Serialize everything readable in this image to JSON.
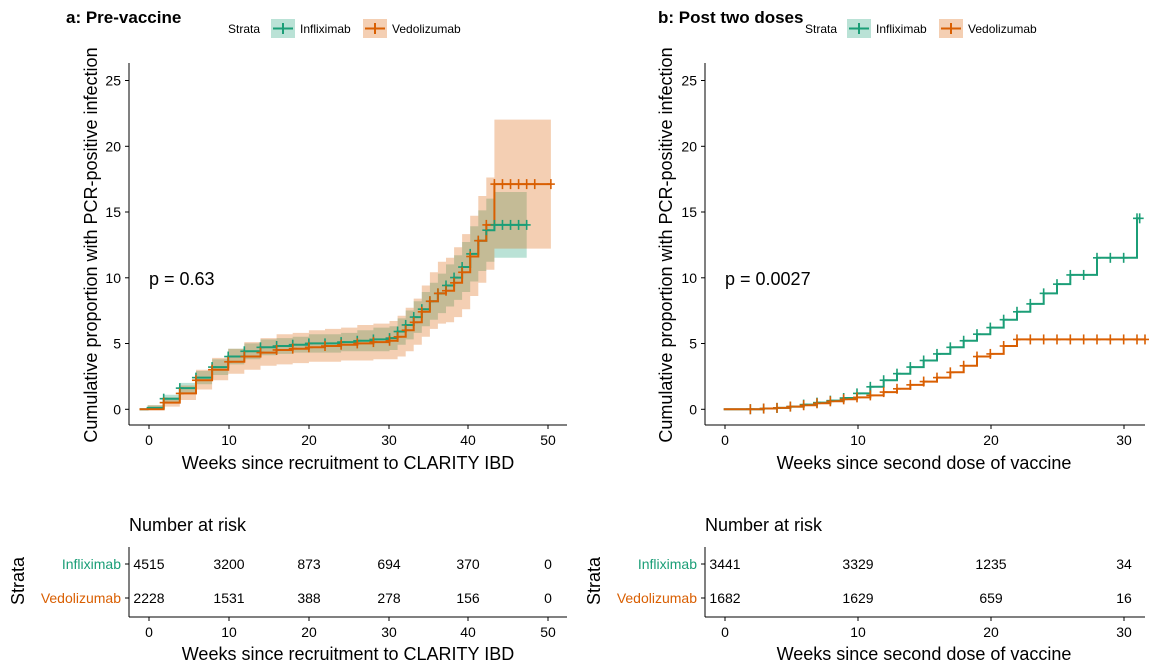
{
  "colors": {
    "infliximab": "#1B9E77",
    "vedolizumab": "#D95F02"
  },
  "panels": [
    {
      "title": "a: Pre-vaccine",
      "legend_title": "Strata",
      "legend_items": [
        "Infliximab",
        "Vedolizumab"
      ],
      "ylabel": "Cumulative proportion with PCR-positive infection",
      "xlabel": "Weeks since recruitment to CLARITY IBD",
      "pvalue": "p = 0.63",
      "y_ticks": [
        "0",
        "5",
        "10",
        "15",
        "20",
        "25"
      ],
      "x_ticks": [
        "0",
        "10",
        "20",
        "30",
        "40",
        "50"
      ],
      "risk_title": "Number at risk",
      "risk_strata_label": "Strata",
      "risk_rows": [
        {
          "label": "Infliximab",
          "values": [
            "4515",
            "3200",
            "873",
            "694",
            "370",
            "0"
          ]
        },
        {
          "label": "Vedolizumab",
          "values": [
            "2228",
            "1531",
            "388",
            "278",
            "156",
            "0"
          ]
        }
      ],
      "risk_x_ticks": [
        "0",
        "10",
        "20",
        "30",
        "40",
        "50"
      ],
      "risk_xlabel": "Weeks since recruitment to CLARITY IBD"
    },
    {
      "title": "b: Post two doses",
      "legend_title": "Strata",
      "legend_items": [
        "Infliximab",
        "Vedolizumab"
      ],
      "ylabel": "Cumulative proportion with PCR-positive infection",
      "xlabel": "Weeks since second dose of vaccine",
      "pvalue": "p = 0.0027",
      "y_ticks": [
        "0",
        "5",
        "10",
        "15",
        "20",
        "25"
      ],
      "x_ticks": [
        "0",
        "10",
        "20",
        "30"
      ],
      "risk_title": "Number at risk",
      "risk_strata_label": "Strata",
      "risk_rows": [
        {
          "label": "Infliximab",
          "values": [
            "3441",
            "3329",
            "1235",
            "34"
          ]
        },
        {
          "label": "Vedolizumab",
          "values": [
            "1682",
            "1629",
            "659",
            "16"
          ]
        }
      ],
      "risk_x_ticks": [
        "0",
        "10",
        "20",
        "30"
      ],
      "risk_xlabel": "Weeks since second dose of vaccine"
    }
  ],
  "chart_data": [
    {
      "type": "line",
      "title": "a: Pre-vaccine",
      "xlabel": "Weeks since recruitment to CLARITY IBD",
      "ylabel": "Cumulative proportion with PCR-positive infection",
      "xlim": [
        -2.3,
        52
      ],
      "ylim": [
        -1.2,
        26.3
      ],
      "x_ticks": [
        0,
        10,
        20,
        30,
        40,
        50
      ],
      "y_ticks": [
        0,
        5,
        10,
        15,
        20,
        25
      ],
      "legend_position": "top",
      "annotation": "p = 0.63",
      "series": [
        {
          "name": "Infliximab",
          "x": [
            -1,
            0,
            2,
            4,
            6,
            8,
            10,
            12,
            14,
            16,
            18,
            20,
            22,
            24,
            26,
            28,
            30,
            31,
            32,
            33,
            34,
            35,
            36,
            37,
            38,
            39,
            40,
            41,
            42,
            43,
            44,
            45,
            46,
            47
          ],
          "y": [
            0,
            0.1,
            0.8,
            1.6,
            2.4,
            3.2,
            4.0,
            4.4,
            4.7,
            4.8,
            4.9,
            5.0,
            5.0,
            5.1,
            5.2,
            5.3,
            5.4,
            5.9,
            6.4,
            7.0,
            7.6,
            8.2,
            8.8,
            9.4,
            10.0,
            10.8,
            11.8,
            12.8,
            13.6,
            14.0,
            14.0,
            14.0,
            14.0,
            14.0
          ],
          "lower": [
            0,
            0,
            0.5,
            1.2,
            1.9,
            2.6,
            3.4,
            3.8,
            4.1,
            4.2,
            4.3,
            4.3,
            4.3,
            4.4,
            4.4,
            4.4,
            4.5,
            4.9,
            5.3,
            5.8,
            6.3,
            6.8,
            7.3,
            7.8,
            8.3,
            8.9,
            9.7,
            10.5,
            11.2,
            11.5,
            11.5,
            11.5,
            11.5,
            11.5
          ],
          "upper": [
            0,
            0.3,
            1.1,
            2.0,
            2.9,
            3.8,
            4.6,
            5.0,
            5.3,
            5.4,
            5.5,
            5.7,
            5.7,
            5.8,
            6.0,
            6.2,
            6.3,
            6.9,
            7.5,
            8.2,
            8.9,
            9.6,
            10.3,
            11.0,
            11.7,
            12.7,
            13.9,
            15.1,
            16.0,
            16.5,
            16.5,
            16.5,
            16.5,
            16.5
          ]
        },
        {
          "name": "Vedolizumab",
          "x": [
            -1,
            0,
            2,
            4,
            6,
            8,
            10,
            12,
            14,
            16,
            18,
            20,
            22,
            24,
            26,
            28,
            30,
            31,
            32,
            33,
            34,
            35,
            36,
            37,
            38,
            39,
            40,
            41,
            42,
            43,
            44,
            45,
            46,
            47,
            48,
            50
          ],
          "y": [
            0,
            0.0,
            0.5,
            1.2,
            2.2,
            3.0,
            3.6,
            4.0,
            4.3,
            4.5,
            4.6,
            4.7,
            4.8,
            4.9,
            5.0,
            5.1,
            5.2,
            5.5,
            6.0,
            6.6,
            7.4,
            8.2,
            8.8,
            9.0,
            9.6,
            10.4,
            11.6,
            12.8,
            14.0,
            17.1,
            17.1,
            17.1,
            17.1,
            17.1,
            17.1,
            17.1
          ],
          "lower": [
            0,
            0,
            0.2,
            0.7,
            1.5,
            2.2,
            2.7,
            3.0,
            3.3,
            3.4,
            3.5,
            3.6,
            3.6,
            3.7,
            3.7,
            3.8,
            3.8,
            4.0,
            4.4,
            4.9,
            5.5,
            6.1,
            6.5,
            6.6,
            7.0,
            7.6,
            8.6,
            9.6,
            10.6,
            12.2,
            12.2,
            12.2,
            12.2,
            12.2,
            12.2,
            12.2
          ],
          "upper": [
            0,
            0.3,
            0.9,
            1.8,
            3.0,
            3.9,
            4.6,
            5.1,
            5.4,
            5.7,
            5.8,
            6.0,
            6.1,
            6.2,
            6.4,
            6.5,
            6.7,
            7.1,
            7.7,
            8.4,
            9.4,
            10.4,
            11.2,
            11.5,
            12.3,
            13.3,
            14.7,
            16.2,
            17.6,
            22.0,
            22.0,
            22.0,
            22.0,
            22.0,
            22.0,
            22.0
          ]
        }
      ]
    },
    {
      "type": "line",
      "title": "b: Post two doses",
      "xlabel": "Weeks since second dose of vaccine",
      "ylabel": "Cumulative proportion with PCR-positive infection",
      "xlim": [
        -1.4,
        31.6
      ],
      "ylim": [
        -1.2,
        26.3
      ],
      "x_ticks": [
        0,
        10,
        20,
        30
      ],
      "y_ticks": [
        0,
        5,
        10,
        15,
        20,
        25
      ],
      "legend_position": "top",
      "annotation": "p = 0.0027",
      "series": [
        {
          "name": "Infliximab",
          "x": [
            0,
            2,
            3,
            4,
            5,
            6,
            7,
            8,
            9,
            10,
            11,
            12,
            13,
            14,
            15,
            16,
            17,
            18,
            19,
            20,
            21,
            22,
            23,
            24,
            25,
            26,
            27,
            28,
            29,
            30,
            31,
            31.2
          ],
          "y": [
            0,
            0,
            0.05,
            0.1,
            0.2,
            0.35,
            0.5,
            0.65,
            0.85,
            1.2,
            1.7,
            2.2,
            2.7,
            3.2,
            3.7,
            4.2,
            4.7,
            5.2,
            5.7,
            6.2,
            6.8,
            7.4,
            8.0,
            8.8,
            9.5,
            10.2,
            10.2,
            11.5,
            11.5,
            11.5,
            14.5,
            14.5
          ]
        },
        {
          "name": "Vedolizumab",
          "x": [
            0,
            2,
            3,
            4,
            5,
            6,
            7,
            8,
            9,
            10,
            11,
            12,
            13,
            14,
            15,
            16,
            17,
            18,
            19,
            20,
            21,
            22,
            23,
            24,
            25,
            26,
            27,
            28,
            29,
            30,
            31,
            31.6
          ],
          "y": [
            0,
            0,
            0.05,
            0.1,
            0.2,
            0.3,
            0.45,
            0.6,
            0.75,
            0.9,
            1.05,
            1.3,
            1.55,
            1.85,
            2.1,
            2.4,
            2.8,
            3.3,
            4.0,
            4.2,
            4.8,
            5.3,
            5.3,
            5.3,
            5.3,
            5.3,
            5.3,
            5.3,
            5.3,
            5.3,
            5.3,
            5.3
          ]
        }
      ]
    }
  ]
}
